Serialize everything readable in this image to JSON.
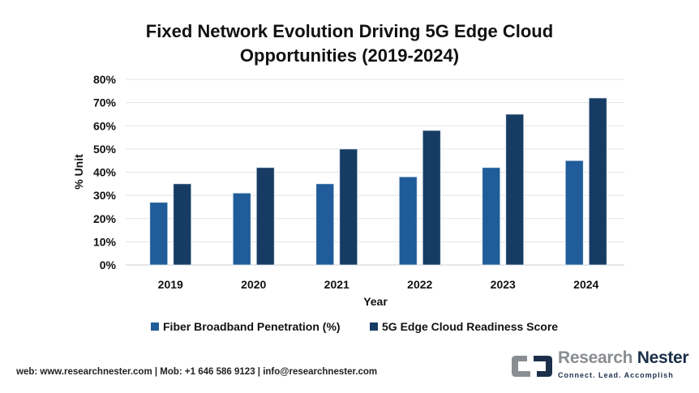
{
  "chart_data": {
    "type": "bar",
    "title_lines": [
      "Fixed Network Evolution Driving 5G Edge Cloud",
      "Opportunities (2019-2024)"
    ],
    "xlabel": "Year",
    "ylabel": "% Unit",
    "categories": [
      "2019",
      "2020",
      "2021",
      "2022",
      "2023",
      "2024"
    ],
    "series": [
      {
        "name": "Fiber Broadband Penetration (%)",
        "values": [
          27,
          31,
          35,
          38,
          42,
          45
        ],
        "color": "#1f5c99"
      },
      {
        "name": "5G Edge Cloud Readiness Score",
        "values": [
          35,
          42,
          50,
          58,
          65,
          72
        ],
        "color": "#173c63"
      }
    ],
    "ylim": [
      0,
      80
    ],
    "yticks": [
      "0%",
      "10%",
      "20%",
      "30%",
      "40%",
      "50%",
      "60%",
      "70%",
      "80%"
    ],
    "grid": true,
    "legend_position": "bottom"
  },
  "footer": "web: www.researchnester.com | Mob: +1 646 586 9123 | info@researchnester.com",
  "logo": {
    "word1": "Research",
    "word2": "Nester",
    "tagline": "Connect. Lead. Accomplish"
  }
}
